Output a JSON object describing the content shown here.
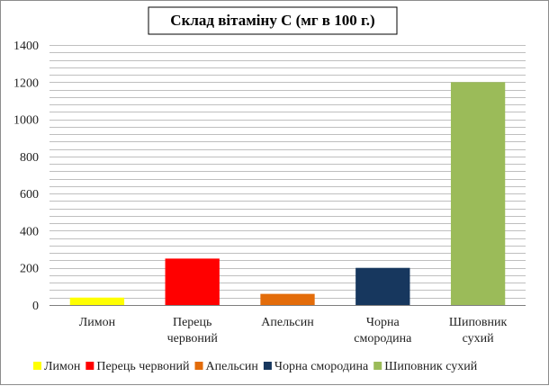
{
  "chart_data": {
    "type": "bar",
    "title": "Склад вітаміну С (мг в 100 г.)",
    "categories": [
      [
        "Лимон"
      ],
      [
        "Перець",
        "червоний"
      ],
      [
        "Апельсин"
      ],
      [
        "Чорна",
        "смородина"
      ],
      [
        "Шиповник",
        "сухий"
      ]
    ],
    "values": [
      40,
      250,
      60,
      200,
      1200
    ],
    "colors": [
      "#ffff00",
      "#ff0000",
      "#e36c0a",
      "#17375e",
      "#9bbb59"
    ],
    "legend": [
      "Лимон",
      "Перець червоний",
      "Апельсин",
      "Чорна смородина",
      "Шиповник сухий"
    ],
    "legend_position": "bottom",
    "ylim": [
      0,
      1400
    ],
    "yticks": [
      0,
      200,
      400,
      600,
      800,
      1000,
      1200,
      1400
    ],
    "minor_gridlines": true,
    "grid_color": "#bfbfbf"
  }
}
